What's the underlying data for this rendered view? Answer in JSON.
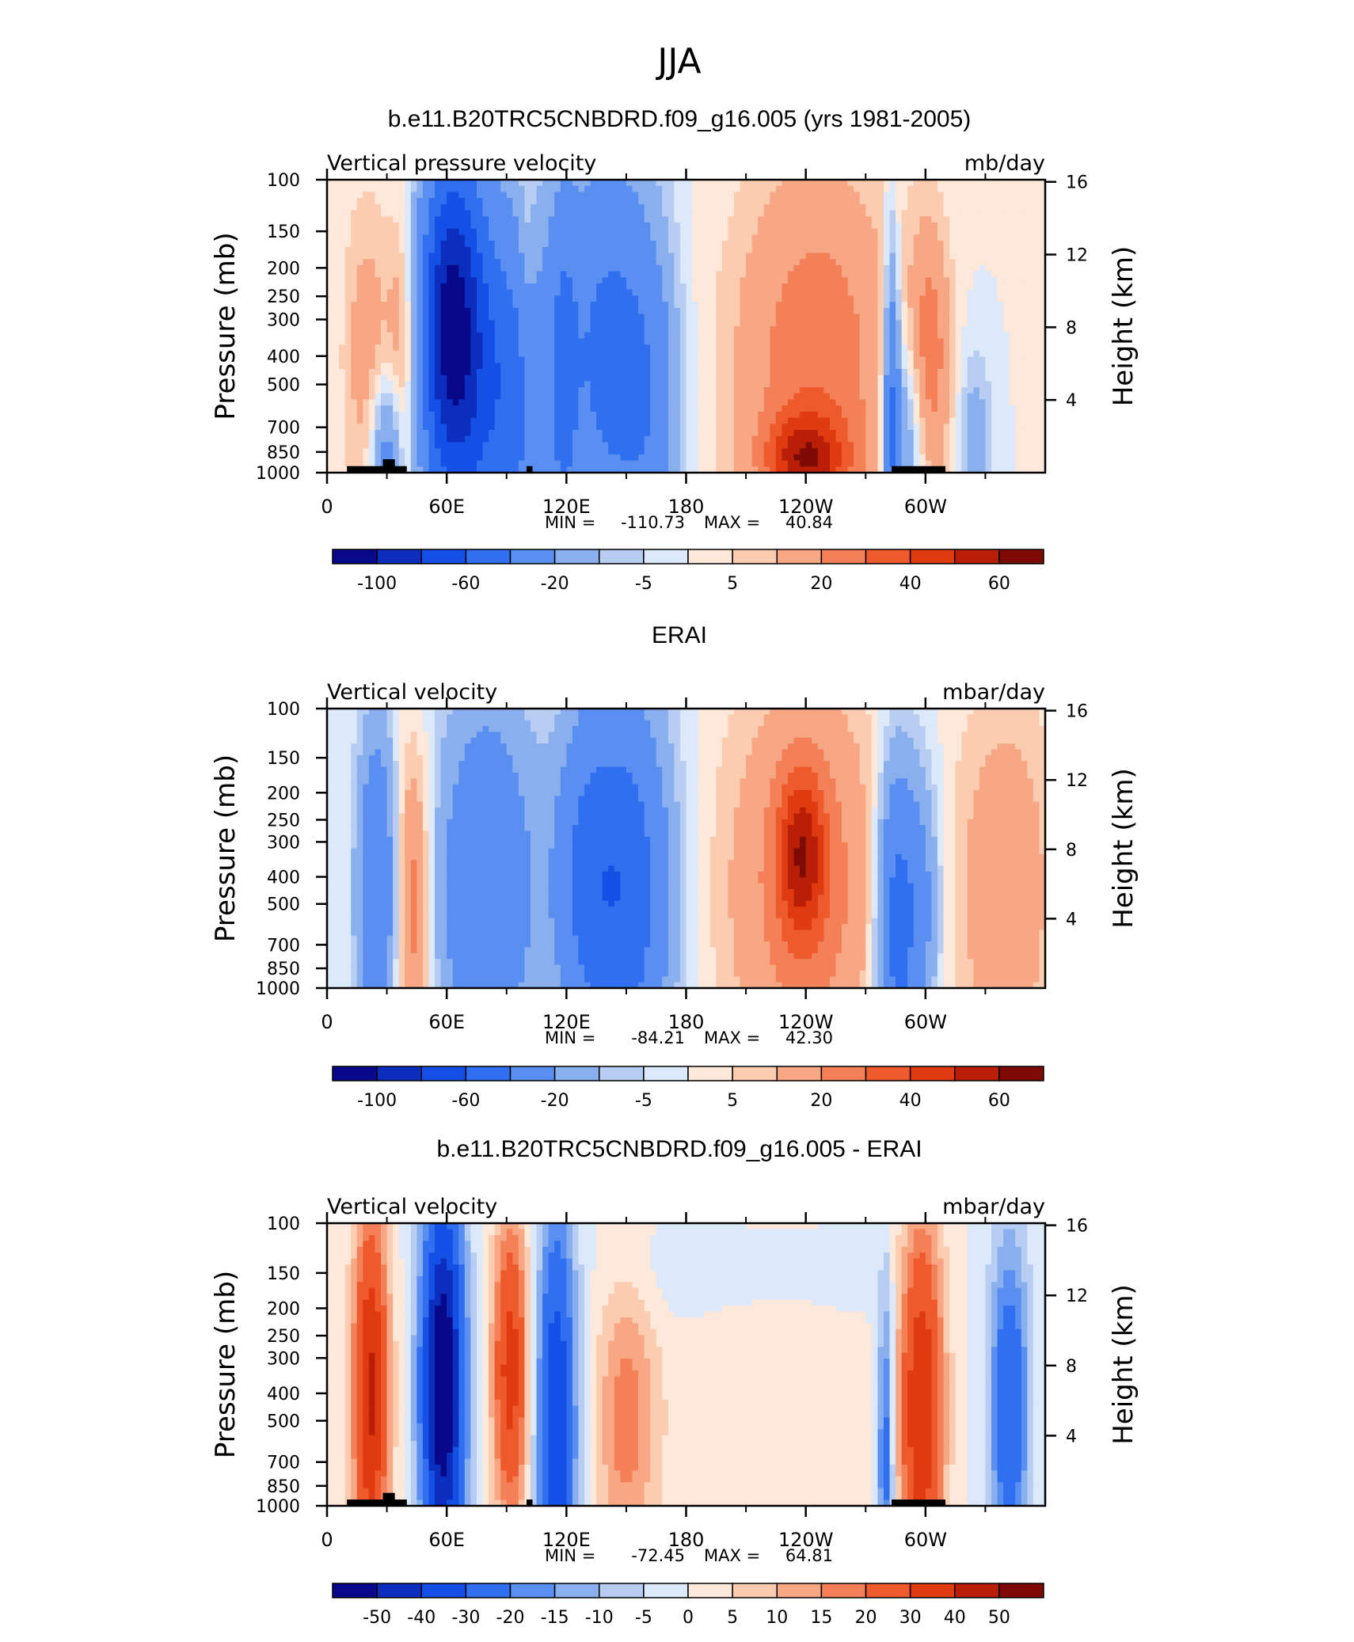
{
  "figure": {
    "title": "JJA"
  },
  "chart_data": [
    {
      "type": "heatmap",
      "title": "b.e11.B20TRC5CNBDRD.f09_g16.005 (yrs 1981-2005)",
      "left_label": "Vertical pressure velocity",
      "right_label": "mb/day",
      "ylabel": "Pressure (mb)",
      "ylabel_right": "Height (km)",
      "x_ticks": [
        "0",
        "60E",
        "120E",
        "180",
        "120W",
        "60W"
      ],
      "y_ticks": [
        "100",
        "150",
        "200",
        "250",
        "300",
        "400",
        "500",
        "700",
        "850",
        "1000"
      ],
      "height_ticks": [
        "16",
        "12",
        "8",
        "4"
      ],
      "stats": {
        "min_label": "MIN =",
        "min": "-110.73",
        "max_label": "MAX =",
        "max": "40.84"
      },
      "colorbar_labels": [
        "-100",
        "-60",
        "-20",
        "-5",
        "5",
        "20",
        "40",
        "60"
      ],
      "colorbar_label_slots": [
        1,
        3,
        5,
        7,
        9,
        11,
        13,
        15
      ],
      "features": [
        {
          "lon": 20,
          "p": 400,
          "v": 15,
          "w": 12,
          "h": 0.55
        },
        {
          "lon": 38,
          "p": 400,
          "v": 20,
          "w": 8,
          "h": 0.5
        },
        {
          "lon": 30,
          "p": 820,
          "v": -30,
          "w": 8,
          "h": 0.25
        },
        {
          "lon": 62,
          "p": 300,
          "v": -85,
          "w": 15,
          "h": 0.55
        },
        {
          "lon": 75,
          "p": 500,
          "v": -45,
          "w": 25,
          "h": 0.7
        },
        {
          "lon": 95,
          "p": 600,
          "v": -25,
          "w": 15,
          "h": 0.6
        },
        {
          "lon": 100,
          "p": 200,
          "v": 8,
          "w": 4,
          "h": 0.4
        },
        {
          "lon": 118,
          "p": 500,
          "v": -30,
          "w": 8,
          "h": 0.7
        },
        {
          "lon": 140,
          "p": 400,
          "v": -45,
          "w": 22,
          "h": 0.7
        },
        {
          "lon": 162,
          "p": 600,
          "v": -25,
          "w": 15,
          "h": 0.6
        },
        {
          "lon": 245,
          "p": 450,
          "v": 28,
          "w": 40,
          "h": 0.7
        },
        {
          "lon": 240,
          "p": 900,
          "v": 40,
          "w": 20,
          "h": 0.15
        },
        {
          "lon": 283,
          "p": 600,
          "v": -40,
          "w": 4,
          "h": 0.6
        },
        {
          "lon": 290,
          "p": 750,
          "v": -25,
          "w": 10,
          "h": 0.35
        },
        {
          "lon": 302,
          "p": 400,
          "v": 25,
          "w": 10,
          "h": 0.45
        },
        {
          "lon": 325,
          "p": 750,
          "v": -15,
          "w": 8,
          "h": 0.3
        }
      ],
      "topography": [
        {
          "lon0": 10,
          "lon1": 40,
          "p_top": 950
        },
        {
          "lon0": 28,
          "lon1": 34,
          "p_top": 900
        },
        {
          "lon0": 100,
          "lon1": 103,
          "p_top": 950
        },
        {
          "lon0": 283,
          "lon1": 310,
          "p_top": 950
        }
      ]
    },
    {
      "type": "heatmap",
      "title": "ERAI",
      "left_label": "Vertical velocity",
      "right_label": "mbar/day",
      "ylabel": "Pressure (mb)",
      "ylabel_right": "Height (km)",
      "x_ticks": [
        "0",
        "60E",
        "120E",
        "180",
        "120W",
        "60W"
      ],
      "y_ticks": [
        "100",
        "150",
        "200",
        "250",
        "300",
        "400",
        "500",
        "700",
        "850",
        "1000"
      ],
      "height_ticks": [
        "16",
        "12",
        "8",
        "4"
      ],
      "stats": {
        "min_label": "MIN =",
        "min": "-84.21",
        "max_label": "MAX =",
        "max": "42.30"
      },
      "colorbar_labels": [
        "-100",
        "-60",
        "-20",
        "-5",
        "5",
        "20",
        "40",
        "60"
      ],
      "colorbar_label_slots": [
        1,
        3,
        5,
        7,
        9,
        11,
        13,
        15
      ],
      "features": [
        {
          "lon": 25,
          "p": 450,
          "v": -40,
          "w": 10,
          "h": 0.6
        },
        {
          "lon": 43,
          "p": 500,
          "v": 28,
          "w": 9,
          "h": 0.55
        },
        {
          "lon": 80,
          "p": 450,
          "v": -40,
          "w": 25,
          "h": 0.7
        },
        {
          "lon": 150,
          "p": 450,
          "v": -55,
          "w": 22,
          "h": 0.7
        },
        {
          "lon": 128,
          "p": 400,
          "v": -30,
          "w": 15,
          "h": 0.6
        },
        {
          "lon": 240,
          "p": 450,
          "v": 25,
          "w": 40,
          "h": 0.75
        },
        {
          "lon": 238,
          "p": 330,
          "v": 38,
          "w": 12,
          "h": 0.3
        },
        {
          "lon": 285,
          "p": 600,
          "v": -50,
          "w": 10,
          "h": 0.6
        },
        {
          "lon": 298,
          "p": 500,
          "v": -25,
          "w": 10,
          "h": 0.5
        },
        {
          "lon": 340,
          "p": 450,
          "v": 18,
          "w": 25,
          "h": 0.7
        }
      ],
      "topography": []
    },
    {
      "type": "heatmap",
      "title": "b.e11.B20TRC5CNBDRD.f09_g16.005 - ERAI",
      "left_label": "Vertical velocity",
      "right_label": "mbar/day",
      "ylabel": "Pressure (mb)",
      "ylabel_right": "Height (km)",
      "x_ticks": [
        "0",
        "60E",
        "120E",
        "180",
        "120W",
        "60W"
      ],
      "y_ticks": [
        "100",
        "150",
        "200",
        "250",
        "300",
        "400",
        "500",
        "700",
        "850",
        "1000"
      ],
      "height_ticks": [
        "16",
        "12",
        "8",
        "4"
      ],
      "stats": {
        "min_label": "MIN =",
        "min": "-72.45",
        "max_label": "MAX =",
        "max": "64.81"
      },
      "colorbar_labels": [
        "-50",
        "-40",
        "-30",
        "-20",
        "-15",
        "-10",
        "-5",
        "0",
        "5",
        "10",
        "15",
        "20",
        "30",
        "40",
        "50"
      ],
      "colorbar_label_slots": [
        1,
        2,
        3,
        4,
        5,
        6,
        7,
        8,
        9,
        10,
        11,
        12,
        13,
        14,
        15
      ],
      "features": [
        {
          "lon": 22,
          "p": 400,
          "v": 42,
          "w": 9,
          "h": 0.65
        },
        {
          "lon": 58,
          "p": 380,
          "v": -62,
          "w": 11,
          "h": 0.7
        },
        {
          "lon": 92,
          "p": 330,
          "v": 35,
          "w": 9,
          "h": 0.55
        },
        {
          "lon": 115,
          "p": 550,
          "v": -40,
          "w": 10,
          "h": 0.8
        },
        {
          "lon": 150,
          "p": 500,
          "v": 18,
          "w": 15,
          "h": 0.5
        },
        {
          "lon": 210,
          "p": 400,
          "v": 5,
          "w": 40,
          "h": 0.8
        },
        {
          "lon": 280,
          "p": 650,
          "v": -25,
          "w": 4,
          "h": 0.6
        },
        {
          "lon": 298,
          "p": 450,
          "v": 40,
          "w": 11,
          "h": 0.65
        },
        {
          "lon": 342,
          "p": 450,
          "v": -30,
          "w": 10,
          "h": 0.6
        },
        {
          "lon": 200,
          "p": 150,
          "v": -6,
          "w": 50,
          "h": 0.2
        }
      ],
      "topography": [
        {
          "lon0": 10,
          "lon1": 40,
          "p_top": 950
        },
        {
          "lon0": 28,
          "lon1": 34,
          "p_top": 900
        },
        {
          "lon0": 100,
          "lon1": 103,
          "p_top": 950
        },
        {
          "lon0": 283,
          "lon1": 310,
          "p_top": 950
        }
      ]
    }
  ],
  "palette": [
    "#08088a",
    "#0c2ebf",
    "#1550e6",
    "#2f6ff0",
    "#5a8ff2",
    "#8aafef",
    "#b8cdf2",
    "#dce9fb",
    "#fde8d9",
    "#fbccb0",
    "#f7a784",
    "#f48058",
    "#ef5a2c",
    "#df3a10",
    "#b81f06",
    "#7d0a04"
  ]
}
